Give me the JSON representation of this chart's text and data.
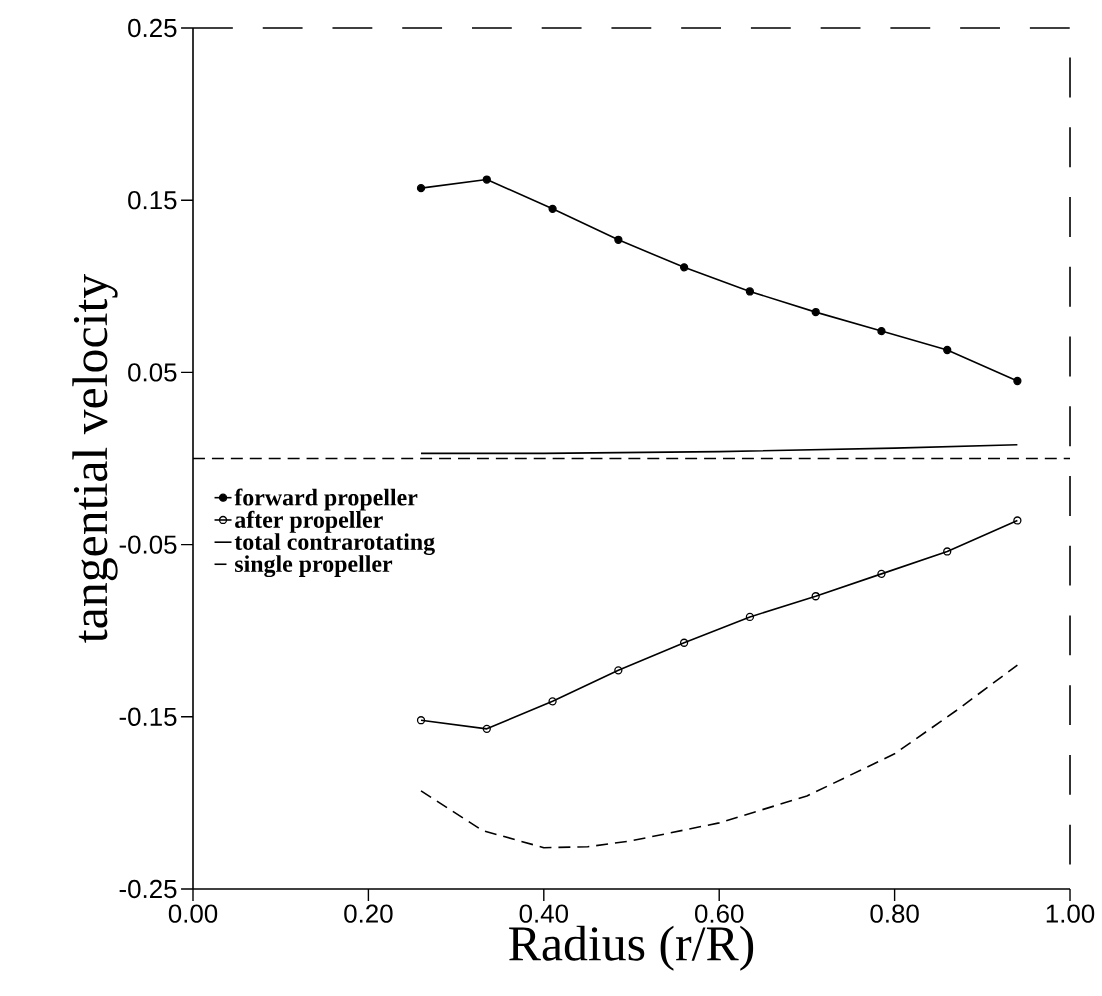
{
  "chart_data": {
    "type": "line",
    "xlabel": "Radius (r/R)",
    "ylabel": "tangential velocity",
    "xlim": [
      0,
      1
    ],
    "ylim": [
      -0.25,
      0.25
    ],
    "xticks": [
      {
        "value": 0,
        "label": "0.00"
      },
      {
        "value": 0.2,
        "label": "0.20"
      },
      {
        "value": 0.4,
        "label": "0.40"
      },
      {
        "value": 0.6,
        "label": "0.60"
      },
      {
        "value": 0.8,
        "label": "0.80"
      },
      {
        "value": 1,
        "label": "1.00"
      }
    ],
    "yticks": [
      -0.25,
      -0.15,
      -0.05,
      0.05,
      0.15,
      0.25
    ],
    "grid": false,
    "legend": "left",
    "ref_lines": [
      {
        "axis": "y",
        "value": 0,
        "line_style": "dashed",
        "color": "#000000"
      }
    ],
    "series": [
      {
        "name": "forward propeller",
        "color": "#000000",
        "marker": "circle",
        "line_style": "solid",
        "x": [
          0.26,
          0.335,
          0.41,
          0.485,
          0.56,
          0.635,
          0.71,
          0.785,
          0.86,
          0.94
        ],
        "values": [
          0.157,
          0.162,
          0.145,
          0.127,
          0.111,
          0.097,
          0.085,
          0.074,
          0.063,
          0.045
        ]
      },
      {
        "name": "after propeller",
        "color": "#000000",
        "marker": "circle",
        "line_style": "solid",
        "x": [
          0.26,
          0.335,
          0.41,
          0.485,
          0.56,
          0.635,
          0.71,
          0.785,
          0.86,
          0.94
        ],
        "values": [
          -0.152,
          -0.157,
          -0.141,
          -0.123,
          -0.107,
          -0.092,
          -0.08,
          -0.067,
          -0.054,
          -0.036
        ]
      },
      {
        "name": "total contrarotating",
        "color": "#000000",
        "marker": "none",
        "line_style": "solid",
        "x": [
          0.26,
          0.4,
          0.6,
          0.8,
          0.94
        ],
        "values": [
          0.003,
          0.003,
          0.004,
          0.006,
          0.008
        ]
      },
      {
        "name": "single propeller",
        "color": "#000000",
        "marker": "none",
        "line_style": "dashed",
        "x": [
          0.26,
          0.33,
          0.4,
          0.45,
          0.5,
          0.6,
          0.7,
          0.8,
          0.87,
          0.94
        ],
        "values": [
          -0.193,
          -0.216,
          -0.226,
          -0.2255,
          -0.222,
          -0.2116,
          -0.196,
          -0.1715,
          -0.1465,
          -0.12
        ]
      }
    ]
  }
}
